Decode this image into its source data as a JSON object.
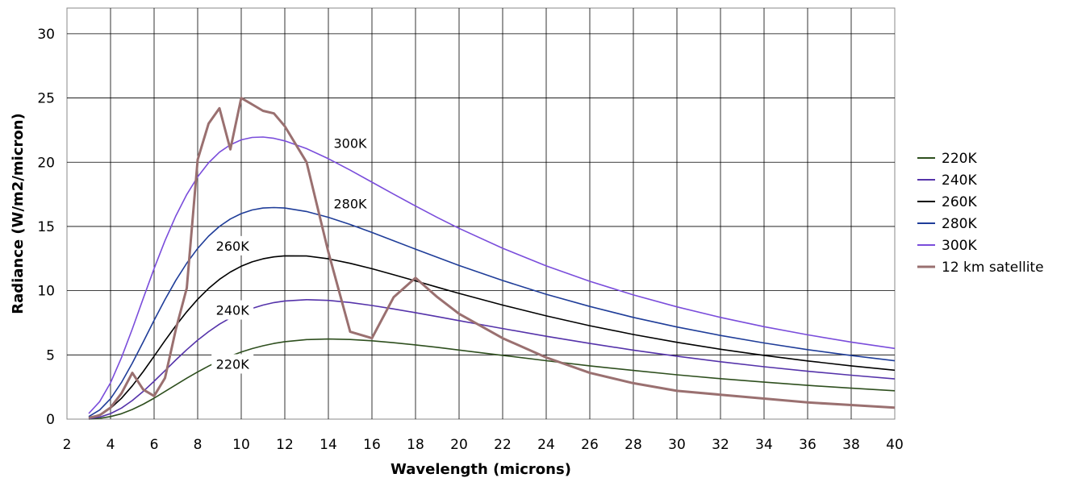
{
  "chart_data": {
    "type": "line",
    "title": "",
    "xlabel": "Wavelength (microns)",
    "ylabel": "Radiance (W/m2/micron)",
    "xlim": [
      2,
      40
    ],
    "ylim": [
      0,
      32
    ],
    "xticks": [
      2,
      4,
      6,
      8,
      10,
      12,
      14,
      16,
      18,
      20,
      22,
      24,
      26,
      28,
      30,
      32,
      34,
      36,
      38,
      40
    ],
    "yticks": [
      0,
      5,
      10,
      15,
      20,
      25,
      30
    ],
    "grid": true,
    "legend_position": "right",
    "x": [
      3,
      3.5,
      4,
      4.5,
      5,
      5.5,
      6,
      6.5,
      7,
      7.5,
      8,
      8.5,
      9,
      9.5,
      10,
      10.5,
      11,
      11.5,
      12,
      13,
      14,
      15,
      16,
      17,
      18,
      19,
      20,
      22,
      24,
      26,
      28,
      30,
      32,
      34,
      36,
      38,
      40
    ],
    "series": [
      {
        "name": "220K",
        "color": "#2e4f1e",
        "values": [
          0.01,
          0.06,
          0.2,
          0.42,
          0.75,
          1.16,
          1.63,
          2.15,
          2.67,
          3.19,
          3.68,
          4.13,
          4.54,
          4.91,
          5.22,
          5.49,
          5.71,
          5.89,
          6.03,
          6.19,
          6.24,
          6.2,
          6.1,
          5.95,
          5.78,
          5.59,
          5.38,
          4.96,
          4.55,
          4.15,
          3.79,
          3.45,
          3.15,
          2.88,
          2.63,
          2.41,
          2.21
        ]
      },
      {
        "name": "240K",
        "color": "#5533aa",
        "values": [
          0.03,
          0.16,
          0.43,
          0.86,
          1.45,
          2.16,
          2.95,
          3.78,
          4.61,
          5.41,
          6.15,
          6.81,
          7.39,
          7.88,
          8.29,
          8.62,
          8.88,
          9.07,
          9.2,
          9.3,
          9.24,
          9.08,
          8.85,
          8.58,
          8.29,
          7.98,
          7.67,
          7.05,
          6.45,
          5.89,
          5.37,
          4.9,
          4.47,
          4.08,
          3.73,
          3.42,
          3.13
        ]
      },
      {
        "name": "260K",
        "color": "#000000",
        "values": [
          0.08,
          0.35,
          0.85,
          1.62,
          2.59,
          3.7,
          4.9,
          6.11,
          7.28,
          8.36,
          9.33,
          10.17,
          10.88,
          11.45,
          11.9,
          12.24,
          12.48,
          12.63,
          12.71,
          12.7,
          12.48,
          12.13,
          11.71,
          11.24,
          10.76,
          10.27,
          9.79,
          8.88,
          8.04,
          7.27,
          6.59,
          5.98,
          5.44,
          4.96,
          4.53,
          4.15,
          3.81
        ]
      },
      {
        "name": "280K",
        "color": "#1f3d99",
        "values": [
          0.2,
          0.71,
          1.59,
          2.85,
          4.36,
          6.01,
          7.69,
          9.31,
          10.81,
          12.14,
          13.29,
          14.24,
          15,
          15.58,
          16,
          16.28,
          16.43,
          16.47,
          16.43,
          16.16,
          15.71,
          15.15,
          14.53,
          13.88,
          13.23,
          12.59,
          11.96,
          10.79,
          9.72,
          8.77,
          7.92,
          7.17,
          6.51,
          5.93,
          5.41,
          4.95,
          4.54
        ]
      },
      {
        "name": "300K",
        "color": "#7a4ddb",
        "values": [
          0.44,
          1.36,
          2.83,
          4.78,
          7.02,
          9.39,
          11.72,
          13.89,
          15.83,
          17.49,
          18.86,
          19.95,
          20.78,
          21.36,
          21.74,
          21.93,
          21.96,
          21.86,
          21.66,
          21.06,
          20.27,
          19.38,
          18.45,
          17.51,
          16.59,
          15.7,
          14.85,
          13.3,
          11.93,
          10.73,
          9.67,
          8.74,
          7.92,
          7.2,
          6.56,
          6,
          5.5
        ]
      },
      {
        "name": "12 km satellite",
        "color": "#9a7070",
        "values": [
          0.1,
          0.3,
          0.9,
          2,
          3.6,
          2.3,
          1.8,
          3.2,
          7,
          10.2,
          20.2,
          23,
          24.2,
          21,
          25,
          24.5,
          24,
          23.8,
          22.8,
          20,
          13,
          6.8,
          6.3,
          9.5,
          11,
          9.5,
          8.2,
          6.3,
          4.8,
          3.6,
          2.8,
          2.2,
          1.9,
          1.6,
          1.3,
          1.1,
          0.9
        ]
      }
    ],
    "curve_labels": [
      {
        "text": "300K",
        "x": 15,
        "y": 21.5
      },
      {
        "text": "280K",
        "x": 15,
        "y": 16.8
      },
      {
        "text": "260K",
        "x": 9.6,
        "y": 13.5
      },
      {
        "text": "240K",
        "x": 9.6,
        "y": 8.5
      },
      {
        "text": "220K",
        "x": 9.6,
        "y": 4.3
      }
    ]
  }
}
